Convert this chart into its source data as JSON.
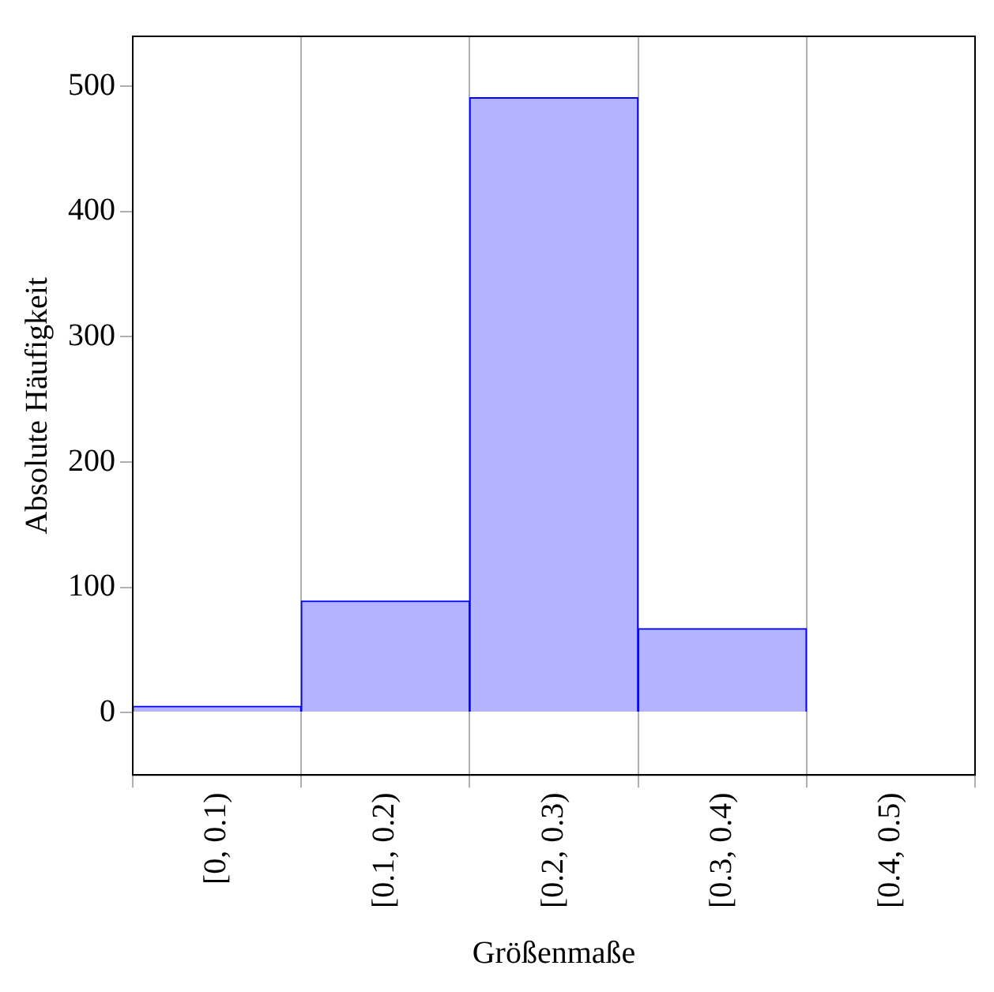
{
  "chart_data": {
    "type": "bar",
    "xlabel": "Größenmaße",
    "ylabel": "Absolute Häufigkeit",
    "categories": [
      "[0, 0.1)",
      "[0.1, 0.2)",
      "[0.2, 0.3)",
      "[0.3, 0.4)",
      "[0.4, 0.5)"
    ],
    "values": [
      5,
      89,
      491,
      67,
      0
    ],
    "color": "#b3b3ff",
    "ylim": [
      -50,
      540
    ],
    "yticks": [
      0,
      100,
      200,
      300,
      400,
      500
    ],
    "grid": "x",
    "legend": false
  }
}
